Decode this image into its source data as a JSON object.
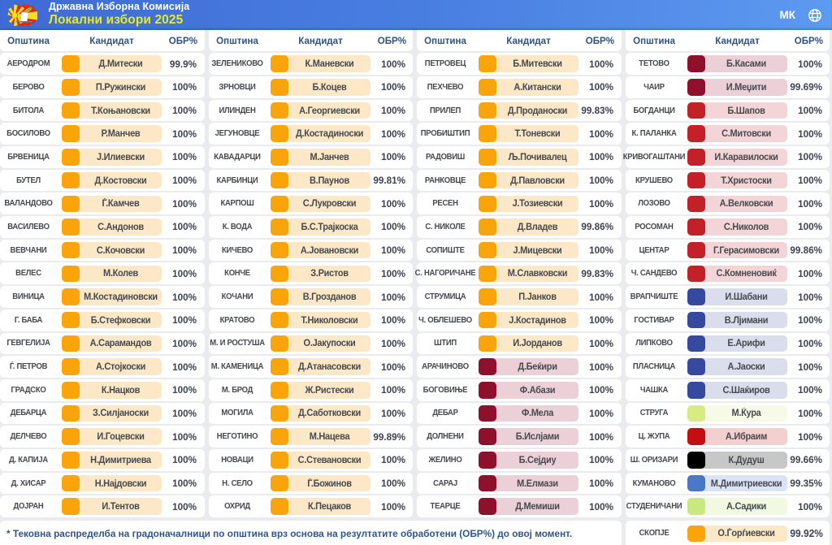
{
  "topbar": {
    "title": "Државна Изборна Комисија",
    "subtitle": "Локални избори 2025",
    "language": "МК",
    "colors": {
      "bar_blue": "#4478DE",
      "subtitle_yellow": "#E7EB1E"
    }
  },
  "table": {
    "column_headers": {
      "municipality": "Општина",
      "candidate": "Кандидат",
      "processed": "ОБР%"
    },
    "parties": {
      "orange": {
        "square": "#F9A40A",
        "bg": "#FCE8C6"
      },
      "maroon": {
        "square": "#8E102C",
        "bg": "#EBD0D8"
      },
      "red": {
        "square": "#C32127",
        "bg": "#F4D5D7"
      },
      "purered": {
        "square": "#C60D12",
        "bg": "#F4CFD0"
      },
      "navy": {
        "square": "#35499E",
        "bg": "#DADDEC"
      },
      "blue": {
        "square": "#4B77C9",
        "bg": "#DAE4F6"
      },
      "lightgreen": {
        "square": "#D8EB83",
        "bg": "#F6FAE6"
      },
      "lightgreen2": {
        "square": "#C9E97F",
        "bg": "#F1F9E0"
      },
      "black": {
        "square": "#000000",
        "bg": "#C7C7C7"
      }
    },
    "groups": [
      {
        "rows": [
          {
            "municipality": "АЕРОДРОМ",
            "candidate": "Д.Митески",
            "processed": "99.9%",
            "party": "orange"
          },
          {
            "municipality": "БЕРОВО",
            "candidate": "П.Ружински",
            "processed": "100%",
            "party": "orange"
          },
          {
            "municipality": "БИТОЛА",
            "candidate": "Т.Коњановски",
            "processed": "100%",
            "party": "orange"
          },
          {
            "municipality": "БОСИЛОВО",
            "candidate": "Р.Манчев",
            "processed": "100%",
            "party": "orange"
          },
          {
            "municipality": "БРВЕНИЦА",
            "candidate": "Ј.Илиевски",
            "processed": "100%",
            "party": "orange"
          },
          {
            "municipality": "БУТЕЛ",
            "candidate": "Д.Костовски",
            "processed": "100%",
            "party": "orange"
          },
          {
            "municipality": "ВАЛАНДОВО",
            "candidate": "Ѓ.Камчев",
            "processed": "100%",
            "party": "orange"
          },
          {
            "municipality": "ВАСИЛЕВО",
            "candidate": "С.Андонов",
            "processed": "100%",
            "party": "orange"
          },
          {
            "municipality": "ВЕВЧАНИ",
            "candidate": "С.Кочовски",
            "processed": "100%",
            "party": "orange"
          },
          {
            "municipality": "ВЕЛЕС",
            "candidate": "М.Колев",
            "processed": "100%",
            "party": "orange"
          },
          {
            "municipality": "ВИНИЦА",
            "candidate": "М.Костадиновски",
            "processed": "100%",
            "party": "orange"
          },
          {
            "municipality": "Г. БАБА",
            "candidate": "Б.Стефковски",
            "processed": "100%",
            "party": "orange"
          },
          {
            "municipality": "ГЕВГЕЛИЈА",
            "candidate": "А.Сарамандов",
            "processed": "100%",
            "party": "orange"
          },
          {
            "municipality": "Ѓ. ПЕТРОВ",
            "candidate": "А.Стојкоски",
            "processed": "100%",
            "party": "orange"
          },
          {
            "municipality": "ГРАДСКО",
            "candidate": "К.Нацков",
            "processed": "100%",
            "party": "orange"
          },
          {
            "municipality": "ДЕБАРЦА",
            "candidate": "З.Силјаноски",
            "processed": "100%",
            "party": "orange"
          },
          {
            "municipality": "ДЕЛЧЕВО",
            "candidate": "И.Гоцевски",
            "processed": "100%",
            "party": "orange"
          },
          {
            "municipality": "Д. КАПИЈА",
            "candidate": "Н.Димитриева",
            "processed": "100%",
            "party": "orange"
          },
          {
            "municipality": "Д. ХИСАР",
            "candidate": "Н.Најдовски",
            "processed": "100%",
            "party": "orange"
          },
          {
            "municipality": "ДОЈРАН",
            "candidate": "И.Тентов",
            "processed": "100%",
            "party": "orange"
          }
        ]
      },
      {
        "rows": [
          {
            "municipality": "ЗЕЛЕНИКОВО",
            "candidate": "К.Маневски",
            "processed": "100%",
            "party": "orange"
          },
          {
            "municipality": "ЗРНОВЦИ",
            "candidate": "Б.Коцев",
            "processed": "100%",
            "party": "orange"
          },
          {
            "municipality": "ИЛИНДЕН",
            "candidate": "А.Георгиевски",
            "processed": "100%",
            "party": "orange"
          },
          {
            "municipality": "ЈЕГУНОВЦЕ",
            "candidate": "Д.Костадиноски",
            "processed": "100%",
            "party": "orange"
          },
          {
            "municipality": "КАВАДАРЦИ",
            "candidate": "М.Јанчев",
            "processed": "100%",
            "party": "orange"
          },
          {
            "municipality": "КАРБИНЦИ",
            "candidate": "В.Паунов",
            "processed": "99.81%",
            "party": "orange"
          },
          {
            "municipality": "КАРПОШ",
            "candidate": "С.Лукровски",
            "processed": "100%",
            "party": "orange"
          },
          {
            "municipality": "К. ВОДА",
            "candidate": "Б.С.Трајкоска",
            "processed": "100%",
            "party": "orange"
          },
          {
            "municipality": "КИЧЕВО",
            "candidate": "А.Јовановски",
            "processed": "100%",
            "party": "orange"
          },
          {
            "municipality": "КОНЧЕ",
            "candidate": "З.Ристов",
            "processed": "100%",
            "party": "orange"
          },
          {
            "municipality": "КОЧАНИ",
            "candidate": "В.Грозданов",
            "processed": "100%",
            "party": "orange"
          },
          {
            "municipality": "КРАТОВО",
            "candidate": "Т.Николовски",
            "processed": "100%",
            "party": "orange"
          },
          {
            "municipality": "М. И РОСТУША",
            "candidate": "О.Јакупоски",
            "processed": "100%",
            "party": "orange"
          },
          {
            "municipality": "М. КАМЕНИЦА",
            "candidate": "Д.Атанасовски",
            "processed": "100%",
            "party": "orange"
          },
          {
            "municipality": "М. БРОД",
            "candidate": "Ж.Ристески",
            "processed": "100%",
            "party": "orange"
          },
          {
            "municipality": "МОГИЛА",
            "candidate": "Д.Саботковски",
            "processed": "100%",
            "party": "orange"
          },
          {
            "municipality": "НЕГОТИНО",
            "candidate": "М.Нацева",
            "processed": "99.89%",
            "party": "orange"
          },
          {
            "municipality": "НОВАЦИ",
            "candidate": "С.Стевановски",
            "processed": "100%",
            "party": "orange"
          },
          {
            "municipality": "Н. СЕЛО",
            "candidate": "Ѓ.Божинов",
            "processed": "100%",
            "party": "orange"
          },
          {
            "municipality": "ОХРИД",
            "candidate": "К.Пецаков",
            "processed": "100%",
            "party": "orange"
          }
        ]
      },
      {
        "rows": [
          {
            "municipality": "ПЕТРОВЕЦ",
            "candidate": "Б.Митевски",
            "processed": "100%",
            "party": "orange"
          },
          {
            "municipality": "ПЕХЧЕВО",
            "candidate": "А.Китански",
            "processed": "100%",
            "party": "orange"
          },
          {
            "municipality": "ПРИЛЕП",
            "candidate": "Д.Проданоски",
            "processed": "99.83%",
            "party": "orange"
          },
          {
            "municipality": "ПРОБИШТИП",
            "candidate": "Т.Тоневски",
            "processed": "100%",
            "party": "orange"
          },
          {
            "municipality": "РАДОВИШ",
            "candidate": "Љ.Почивалец",
            "processed": "100%",
            "party": "orange"
          },
          {
            "municipality": "РАНКОВЦЕ",
            "candidate": "Д.Павловски",
            "processed": "100%",
            "party": "orange"
          },
          {
            "municipality": "РЕСЕН",
            "candidate": "Ј.Тозиевски",
            "processed": "100%",
            "party": "orange"
          },
          {
            "municipality": "С. НИКОЛЕ",
            "candidate": "Д.Владев",
            "processed": "99.86%",
            "party": "orange"
          },
          {
            "municipality": "СОПИШТЕ",
            "candidate": "Ј.Мицевски",
            "processed": "100%",
            "party": "orange"
          },
          {
            "municipality": "С. НАГОРИЧАНЕ",
            "candidate": "М.Славковски",
            "processed": "99.83%",
            "party": "orange"
          },
          {
            "municipality": "СТРУМИЦА",
            "candidate": "П.Јанков",
            "processed": "100%",
            "party": "orange"
          },
          {
            "municipality": "Ч. ОБЛЕШЕВО",
            "candidate": "Ј.Костадинов",
            "processed": "100%",
            "party": "orange"
          },
          {
            "municipality": "ШТИП",
            "candidate": "И.Јорданов",
            "processed": "100%",
            "party": "orange"
          },
          {
            "municipality": "АРАЧИНОВО",
            "candidate": "Д.Беќири",
            "processed": "100%",
            "party": "maroon"
          },
          {
            "municipality": "БОГОВИЊЕ",
            "candidate": "Ф.Абази",
            "processed": "100%",
            "party": "maroon"
          },
          {
            "municipality": "ДЕБАР",
            "candidate": "Ф.Мела",
            "processed": "100%",
            "party": "maroon"
          },
          {
            "municipality": "ДОЛНЕНИ",
            "candidate": "Б.Ислјами",
            "processed": "100%",
            "party": "maroon"
          },
          {
            "municipality": "ЖЕЛИНО",
            "candidate": "Б.Сејдиу",
            "processed": "100%",
            "party": "maroon"
          },
          {
            "municipality": "САРАЈ",
            "candidate": "М.Елмази",
            "processed": "100%",
            "party": "maroon"
          },
          {
            "municipality": "ТЕАРЦЕ",
            "candidate": "Д.Мемиши",
            "processed": "100%",
            "party": "maroon"
          }
        ]
      },
      {
        "rows": [
          {
            "municipality": "ТЕТОВО",
            "candidate": "Б.Касами",
            "processed": "100%",
            "party": "maroon"
          },
          {
            "municipality": "ЧАИР",
            "candidate": "И.Меџити",
            "processed": "99.69%",
            "party": "maroon"
          },
          {
            "municipality": "БОГДАНЦИ",
            "candidate": "Б.Шапов",
            "processed": "100%",
            "party": "red"
          },
          {
            "municipality": "К. ПАЛАНКА",
            "candidate": "С.Митовски",
            "processed": "100%",
            "party": "red"
          },
          {
            "municipality": "КРИВОГАШТАНИ",
            "candidate": "И.Каравилоски",
            "processed": "100%",
            "party": "red"
          },
          {
            "municipality": "КРУШЕВО",
            "candidate": "Т.Христоски",
            "processed": "100%",
            "party": "red"
          },
          {
            "municipality": "ЛОЗОВО",
            "candidate": "А.Велковски",
            "processed": "100%",
            "party": "red"
          },
          {
            "municipality": "РОСОМАН",
            "candidate": "С.Николов",
            "processed": "100%",
            "party": "red"
          },
          {
            "municipality": "ЦЕНТАР",
            "candidate": "Г.Герасимовски",
            "processed": "99.86%",
            "party": "red"
          },
          {
            "municipality": "Ч. САНДЕВО",
            "candidate": "С.Комненовиќ",
            "processed": "100%",
            "party": "red"
          },
          {
            "municipality": "ВРАПЧИШТЕ",
            "candidate": "И.Шабани",
            "processed": "100%",
            "party": "navy"
          },
          {
            "municipality": "ГОСТИВАР",
            "candidate": "В.Лјимани",
            "processed": "100%",
            "party": "navy"
          },
          {
            "municipality": "ЛИПКОВО",
            "candidate": "Е.Арифи",
            "processed": "100%",
            "party": "navy"
          },
          {
            "municipality": "ПЛАСНИЦА",
            "candidate": "А.Јаоски",
            "processed": "100%",
            "party": "navy"
          },
          {
            "municipality": "ЧАШКА",
            "candidate": "С.Шаќиров",
            "processed": "100%",
            "party": "navy"
          },
          {
            "municipality": "СТРУГА",
            "candidate": "М.Ќура",
            "processed": "100%",
            "party": "lightgreen"
          },
          {
            "municipality": "Ц. ЖУПА",
            "candidate": "А.Ибраим",
            "processed": "100%",
            "party": "purered"
          },
          {
            "municipality": "Ш. ОРИЗАРИ",
            "candidate": "К.Дудуш",
            "processed": "99.66%",
            "party": "black"
          },
          {
            "municipality": "КУМАНОВО",
            "candidate": "М.Димитриевски",
            "processed": "99.35%",
            "party": "blue"
          },
          {
            "municipality": "СТУДЕНИЧАНИ",
            "candidate": "А.Садики",
            "processed": "100%",
            "party": "lightgreen2"
          }
        ]
      }
    ]
  },
  "footer": {
    "note": "* Тековна распределба на градоначалници по општина врз основа на резултатите обработени (ОБР%) до овој момент.",
    "skopje": {
      "municipality": "СКОПЈЕ",
      "candidate": "О.Ѓорѓиевски",
      "processed": "99.92%",
      "party": "orange"
    }
  }
}
